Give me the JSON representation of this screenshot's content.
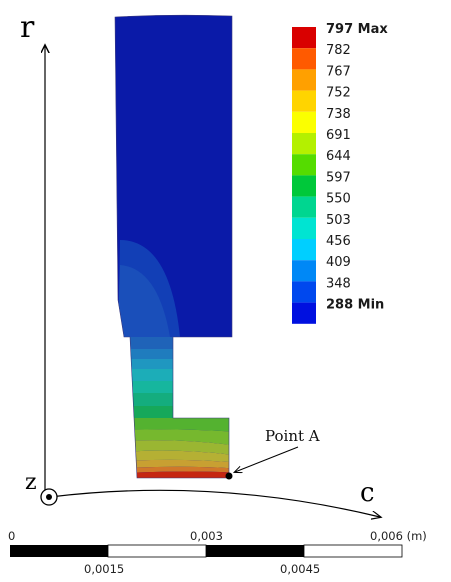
{
  "axes": {
    "vertical_label": "r",
    "horizontal_label": "c",
    "origin_label": "z"
  },
  "legend": {
    "entries": [
      {
        "label": "797 Max",
        "color": "#d90000",
        "bold": true
      },
      {
        "label": "782",
        "color": "#ff5a00",
        "bold": false
      },
      {
        "label": "767",
        "color": "#ffa000",
        "bold": false
      },
      {
        "label": "752",
        "color": "#ffd400",
        "bold": false
      },
      {
        "label": "738",
        "color": "#fbff00",
        "bold": false
      },
      {
        "label": "691",
        "color": "#b4f000",
        "bold": false
      },
      {
        "label": "644",
        "color": "#55dc00",
        "bold": false
      },
      {
        "label": "597",
        "color": "#00c83a",
        "bold": false
      },
      {
        "label": "550",
        "color": "#00d690",
        "bold": false
      },
      {
        "label": "503",
        "color": "#00e4d2",
        "bold": false
      },
      {
        "label": "456",
        "color": "#00cfff",
        "bold": false
      },
      {
        "label": "409",
        "color": "#0088f6",
        "bold": false
      },
      {
        "label": "348",
        "color": "#0048ee",
        "bold": false
      },
      {
        "label": "288 Min",
        "color": "#0010e0",
        "bold": true
      }
    ]
  },
  "annotation": {
    "label": "Point A"
  },
  "scale_bar": {
    "top_labels": [
      "0",
      "0,003",
      "0,006 (m)"
    ],
    "bottom_labels": [
      "0,0015",
      "0,0045"
    ]
  },
  "colors": {
    "body_dark_blue": "#0a1aa8",
    "min_blue": "#0010e0",
    "max_red": "#d90000"
  }
}
